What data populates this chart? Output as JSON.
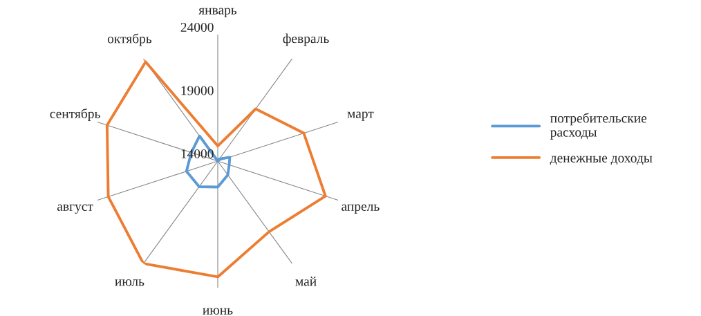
{
  "chart_data": {
    "type": "radar",
    "categories": [
      "январь",
      "февраль",
      "март",
      "апрель",
      "май",
      "июнь",
      "июль",
      "август",
      "сентябрь",
      "октябрь"
    ],
    "series": [
      {
        "name": "потребительские расходы",
        "color": "#5b9bd5",
        "values": [
          14000,
          14200,
          15000,
          14950,
          15350,
          16050,
          16500,
          16600,
          16200,
          16450
        ]
      },
      {
        "name": "денежные доходы",
        "color": "#ed7d31",
        "values": [
          15200,
          19100,
          21150,
          22950,
          20900,
          23150,
          24000,
          23100,
          23200,
          23700
        ]
      }
    ],
    "ylim": [
      14000,
      24000
    ],
    "yticks": [
      14000,
      19000,
      24000
    ],
    "grid": "x",
    "legend": "right",
    "marker": "none",
    "line_style": "solid"
  }
}
